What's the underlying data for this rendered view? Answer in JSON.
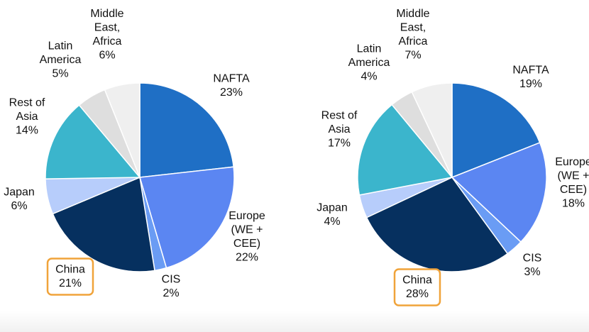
{
  "chart_data": [
    {
      "type": "pie",
      "title": "",
      "slices": [
        {
          "key": "nafta",
          "lines": [
            "NAFTA"
          ],
          "pct": "23%",
          "value": 23,
          "color": "#1f6fc5"
        },
        {
          "key": "europe",
          "lines": [
            "Europe",
            "(WE +",
            "CEE)"
          ],
          "pct": "22%",
          "value": 22,
          "color": "#5b86f2"
        },
        {
          "key": "cis",
          "lines": [
            "CIS"
          ],
          "pct": "2%",
          "value": 2,
          "color": "#6a9cf4"
        },
        {
          "key": "china",
          "lines": [
            "China"
          ],
          "pct": "21%",
          "value": 21,
          "color": "#06305f",
          "highlighted": true
        },
        {
          "key": "japan",
          "lines": [
            "Japan"
          ],
          "pct": "6%",
          "value": 6,
          "color": "#b7cdfb"
        },
        {
          "key": "rest-of-asia",
          "lines": [
            "Rest of",
            "Asia"
          ],
          "pct": "14%",
          "value": 14,
          "color": "#3bb5cc"
        },
        {
          "key": "latin-america",
          "lines": [
            "Latin",
            "America"
          ],
          "pct": "5%",
          "value": 5,
          "color": "#dedede"
        },
        {
          "key": "middle-east-africa",
          "lines": [
            "Middle",
            "East,",
            "Africa"
          ],
          "pct": "6%",
          "value": 6,
          "color": "#efefef"
        }
      ]
    },
    {
      "type": "pie",
      "title": "",
      "slices": [
        {
          "key": "nafta",
          "lines": [
            "NAFTA"
          ],
          "pct": "19%",
          "value": 19,
          "color": "#1f6fc5"
        },
        {
          "key": "europe",
          "lines": [
            "Europe",
            "(WE +",
            "CEE)"
          ],
          "pct": "18%",
          "value": 18,
          "color": "#5b86f2"
        },
        {
          "key": "cis",
          "lines": [
            "CIS"
          ],
          "pct": "3%",
          "value": 3,
          "color": "#6a9cf4"
        },
        {
          "key": "china",
          "lines": [
            "China"
          ],
          "pct": "28%",
          "value": 28,
          "color": "#06305f",
          "highlighted": true
        },
        {
          "key": "japan",
          "lines": [
            "Japan"
          ],
          "pct": "4%",
          "value": 4,
          "color": "#b7cdfb"
        },
        {
          "key": "rest-of-asia",
          "lines": [
            "Rest of",
            "Asia"
          ],
          "pct": "17%",
          "value": 17,
          "color": "#3bb5cc"
        },
        {
          "key": "latin-america",
          "lines": [
            "Latin",
            "America"
          ],
          "pct": "4%",
          "value": 4,
          "color": "#dedede"
        },
        {
          "key": "middle-east-africa",
          "lines": [
            "Middle",
            "East,",
            "Africa"
          ],
          "pct": "7%",
          "value": 7,
          "color": "#efefef"
        }
      ]
    }
  ],
  "highlight_color": "#f0a33a"
}
